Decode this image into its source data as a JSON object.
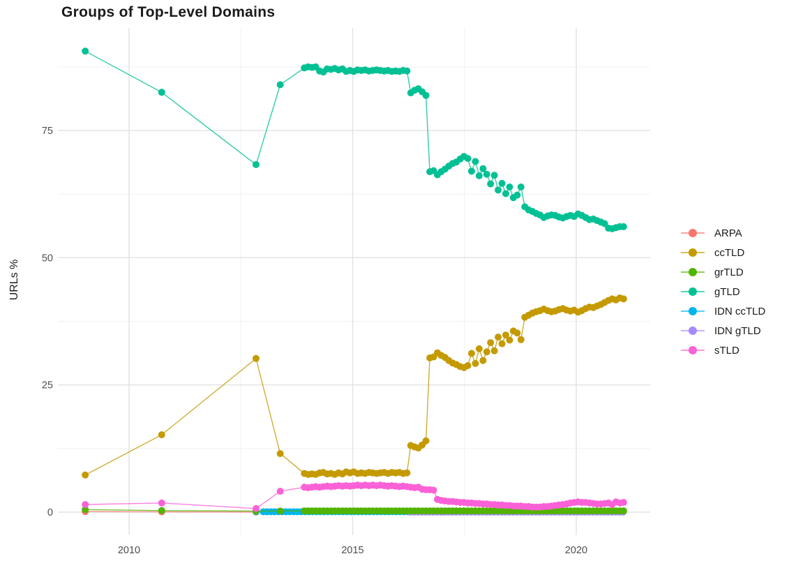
{
  "chart_data": {
    "type": "line",
    "title": "Groups of Top-Level Domains",
    "ylabel": "URLs %",
    "xlabel": "",
    "grid": true,
    "legend_position": "right",
    "x_axis": {
      "ticks": [
        2010,
        2015,
        2020
      ],
      "minor": [
        2012.5,
        2017.5
      ],
      "range": [
        2008.4,
        2021.7
      ]
    },
    "y_axis": {
      "ticks": [
        0,
        25,
        50,
        75
      ],
      "minor": [
        12.5,
        37.5,
        62.5,
        87.5
      ],
      "range": [
        -4.5,
        95.2
      ]
    },
    "style": {
      "marker_radius": 5,
      "line_width": 1.4
    },
    "series": [
      {
        "name": "ARPA",
        "color": "#F8766D",
        "z": 1,
        "points": [
          [
            2009.02,
            0.1
          ],
          [
            2010.73,
            0.05
          ],
          [
            2012.84,
            0.02
          ]
        ]
      },
      {
        "name": "ccTLD",
        "color": "#C49A00",
        "z": 6,
        "points": [
          [
            2009.02,
            7.3
          ],
          [
            2010.73,
            15.2
          ],
          [
            2012.84,
            30.2
          ],
          [
            2013.38,
            11.5
          ]
        ],
        "dense": {
          "x_start": 2013.92,
          "x_step": 0.085,
          "values": [
            7.6,
            7.4,
            7.5,
            7.4,
            7.7,
            7.8,
            7.5,
            7.6,
            7.4,
            7.7,
            7.5,
            7.9,
            7.7,
            7.9,
            7.6,
            7.7,
            7.6,
            7.8,
            7.7,
            7.6,
            7.7,
            7.8,
            7.6,
            7.8,
            7.7,
            7.8,
            7.6,
            7.7,
            13.1,
            12.8,
            12.6,
            13.2,
            14.0,
            30.3,
            30.5,
            31.3,
            30.8,
            30.4,
            29.8,
            29.3,
            29.0,
            28.6,
            28.4,
            28.8,
            31.2,
            29.2,
            32.1,
            29.8,
            31.5,
            33.3,
            31.7,
            34.4,
            33.1,
            34.8,
            33.8,
            35.6,
            35.2,
            33.9,
            38.3,
            38.7,
            39.1,
            39.4,
            39.6,
            39.9,
            39.6,
            39.4,
            39.5,
            39.8,
            40.0,
            39.7,
            39.5,
            39.7,
            39.3,
            39.6,
            40.0,
            40.3,
            40.2,
            40.5,
            40.8,
            41.2,
            41.6,
            41.9,
            41.7,
            42.1,
            41.9
          ]
        }
      },
      {
        "name": "grTLD",
        "color": "#53B400",
        "z": 4,
        "points": [
          [
            2009.02,
            0.5
          ],
          [
            2010.73,
            0.3
          ],
          [
            2012.84,
            0.2
          ],
          [
            2013.38,
            0.2
          ]
        ],
        "dense": {
          "x_start": 2013.92,
          "x_step": 0.085,
          "count": 85,
          "value": 0.25
        }
      },
      {
        "name": "gTLD",
        "color": "#00C094",
        "z": 7,
        "points": [
          [
            2009.02,
            90.6
          ],
          [
            2010.73,
            82.5
          ],
          [
            2012.84,
            68.3
          ],
          [
            2013.38,
            84.0
          ]
        ],
        "dense": {
          "x_start": 2013.92,
          "x_step": 0.085,
          "values": [
            87.3,
            87.5,
            87.4,
            87.5,
            86.7,
            86.5,
            87.1,
            87.0,
            87.2,
            86.9,
            87.1,
            86.6,
            86.8,
            86.6,
            86.9,
            86.8,
            86.9,
            86.7,
            86.8,
            86.9,
            86.8,
            86.7,
            86.8,
            86.6,
            86.7,
            86.6,
            86.8,
            86.7,
            82.4,
            82.9,
            83.2,
            82.6,
            81.9,
            66.9,
            67.1,
            66.3,
            66.9,
            67.4,
            68.0,
            68.5,
            68.8,
            69.4,
            69.9,
            69.5,
            67.0,
            68.9,
            66.1,
            67.5,
            66.4,
            64.5,
            66.2,
            63.3,
            64.6,
            62.6,
            63.9,
            61.8,
            62.3,
            63.9,
            60.0,
            59.4,
            59.1,
            58.7,
            58.4,
            57.9,
            58.2,
            58.4,
            58.3,
            58.0,
            57.8,
            58.1,
            58.3,
            58.1,
            58.6,
            58.3,
            57.9,
            57.5,
            57.6,
            57.3,
            57.0,
            56.7,
            55.8,
            55.7,
            55.9,
            56.1,
            56.1
          ]
        }
      },
      {
        "name": "IDN ccTLD",
        "color": "#00B6EB",
        "z": 2,
        "points": [
          [
            2012.84,
            0.1
          ]
        ],
        "dense": {
          "x_start": 2013.0,
          "x_step": 0.085,
          "count": 95,
          "value": 0.07
        }
      },
      {
        "name": "IDN gTLD",
        "color": "#A58AFF",
        "z": 3,
        "points": [],
        "dense": {
          "x_start": 2016.29,
          "x_step": 0.085,
          "count": 57,
          "value": 0.0
        }
      },
      {
        "name": "sTLD",
        "color": "#FB61D7",
        "z": 5,
        "points": [
          [
            2009.02,
            1.5
          ],
          [
            2010.73,
            1.8
          ],
          [
            2012.84,
            0.7
          ],
          [
            2013.38,
            4.1
          ]
        ],
        "dense": {
          "x_start": 2013.92,
          "x_step": 0.085,
          "values": [
            4.9,
            4.8,
            4.9,
            5.0,
            4.9,
            5.0,
            5.1,
            5.0,
            5.1,
            5.2,
            5.1,
            5.2,
            5.1,
            5.2,
            5.3,
            5.2,
            5.3,
            5.2,
            5.3,
            5.2,
            5.3,
            5.2,
            5.1,
            5.2,
            5.1,
            5.0,
            5.1,
            5.0,
            4.9,
            4.8,
            4.9,
            4.5,
            4.4,
            4.4,
            4.3,
            2.5,
            2.3,
            2.2,
            2.1,
            2.1,
            2.0,
            1.9,
            1.9,
            1.8,
            1.8,
            1.7,
            1.7,
            1.6,
            1.6,
            1.5,
            1.5,
            1.4,
            1.4,
            1.3,
            1.3,
            1.2,
            1.2,
            1.2,
            1.1,
            1.1,
            1.0,
            1.0,
            1.0,
            1.1,
            1.1,
            1.2,
            1.3,
            1.4,
            1.5,
            1.6,
            1.8,
            1.9,
            2.0,
            1.9,
            1.9,
            1.8,
            1.7,
            1.6,
            1.6,
            1.7,
            1.8,
            1.5,
            2.0,
            1.8,
            1.9
          ]
        }
      }
    ]
  },
  "colors": {
    "background": "#ffffff",
    "grid_major": "#e2e2e2",
    "grid_minor": "#f0f0f0",
    "tick_label": "#4d4d4d",
    "title": "#1a1a1a"
  }
}
